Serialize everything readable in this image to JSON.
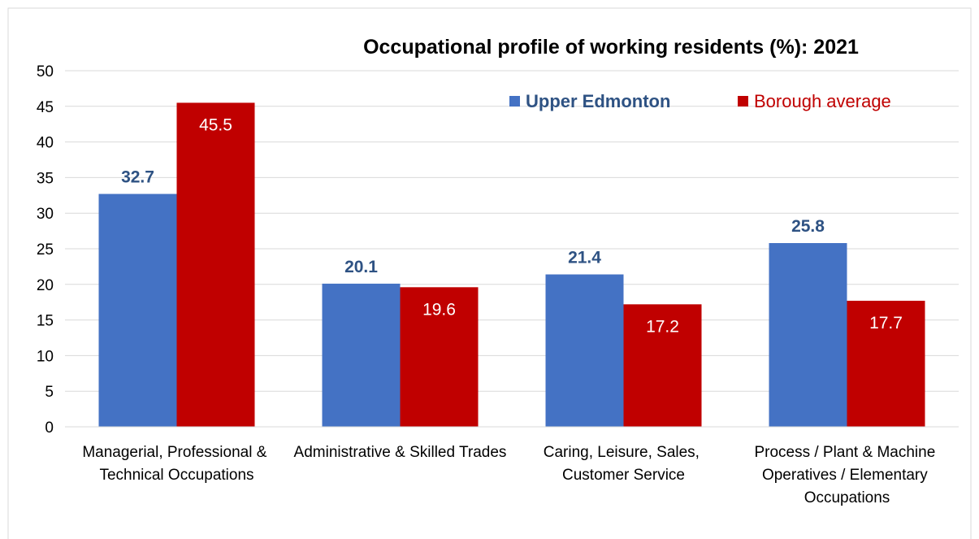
{
  "chart_data": {
    "type": "bar",
    "title": "Occupational profile of working residents (%):  2021",
    "categories": [
      "Managerial, Professional & Technical Occupations",
      "Administrative & Skilled Trades",
      "Caring, Leisure, Sales, Customer Service",
      "Process / Plant & Machine Operatives / Elementary Occupations"
    ],
    "series": [
      {
        "name": "Upper Edmonton",
        "color": "#4472c4",
        "values": [
          32.7,
          20.1,
          21.4,
          25.8
        ]
      },
      {
        "name": "Borough average",
        "color": "#c00000",
        "values": [
          45.5,
          19.6,
          17.2,
          17.7
        ]
      }
    ],
    "ylim": [
      0,
      50
    ],
    "yticks": [
      0,
      5,
      10,
      15,
      20,
      25,
      30,
      35,
      40,
      45,
      50
    ],
    "grid": true,
    "legend": "top-right"
  }
}
